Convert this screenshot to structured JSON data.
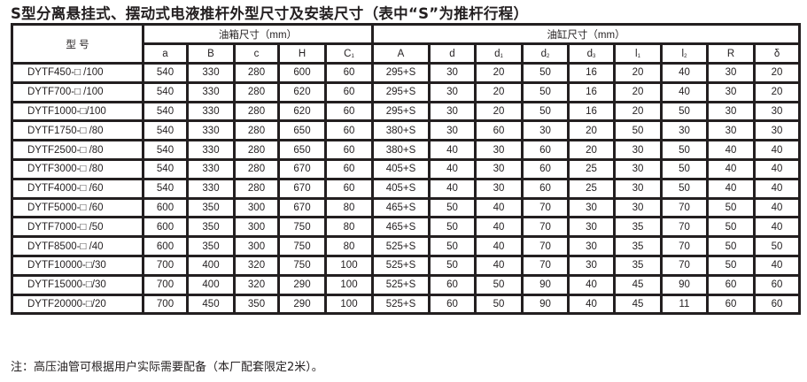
{
  "title": "S型分离悬挂式、摆动式电液推杆外型尺寸及安装尺寸（表中“S”为推杆行程）",
  "table": {
    "model_header": "型 号",
    "group_tank": "油箱尺寸（mm）",
    "group_cylinder": "油缸尺寸（mm）",
    "columns": [
      {
        "base": "a",
        "sub": ""
      },
      {
        "base": "B",
        "sub": ""
      },
      {
        "base": "c",
        "sub": ""
      },
      {
        "base": "H",
        "sub": ""
      },
      {
        "base": "C",
        "sub": "1"
      },
      {
        "base": "A",
        "sub": ""
      },
      {
        "base": "d",
        "sub": ""
      },
      {
        "base": "d",
        "sub": "1"
      },
      {
        "base": "d",
        "sub": "2"
      },
      {
        "base": "d",
        "sub": "3"
      },
      {
        "base": "l",
        "sub": "1"
      },
      {
        "base": "l",
        "sub": "2"
      },
      {
        "base": "R",
        "sub": ""
      },
      {
        "base": "δ",
        "sub": ""
      }
    ],
    "rows": [
      [
        "DYTF450-□ /100",
        "540",
        "330",
        "280",
        "600",
        "60",
        "295+S",
        "30",
        "20",
        "50",
        "16",
        "20",
        "40",
        "30",
        "20"
      ],
      [
        "DYTF700-□ /100",
        "540",
        "330",
        "280",
        "620",
        "60",
        "295+S",
        "30",
        "20",
        "50",
        "16",
        "20",
        "40",
        "30",
        "20"
      ],
      [
        "DYTF1000-□/100",
        "540",
        "330",
        "280",
        "620",
        "60",
        "295+S",
        "30",
        "20",
        "50",
        "16",
        "20",
        "50",
        "30",
        "30"
      ],
      [
        "DYTF1750-□ /80",
        "540",
        "330",
        "280",
        "650",
        "60",
        "380+S",
        "30",
        "60",
        "30",
        "20",
        "50",
        "30",
        "30",
        "30"
      ],
      [
        "DYTF2500-□ /80",
        "540",
        "330",
        "280",
        "650",
        "60",
        "380+S",
        "40",
        "30",
        "60",
        "20",
        "30",
        "50",
        "40",
        "40"
      ],
      [
        "DYTF3000-□ /80",
        "540",
        "330",
        "280",
        "670",
        "60",
        "405+S",
        "40",
        "30",
        "60",
        "25",
        "30",
        "50",
        "40",
        "40"
      ],
      [
        "DYTF4000-□ /60",
        "540",
        "330",
        "280",
        "670",
        "60",
        "405+S",
        "40",
        "30",
        "60",
        "25",
        "30",
        "50",
        "40",
        "40"
      ],
      [
        "DYTF5000-□ /60",
        "600",
        "350",
        "300",
        "670",
        "80",
        "465+S",
        "50",
        "40",
        "70",
        "30",
        "30",
        "70",
        "50",
        "40"
      ],
      [
        "DYTF7000-□ /50",
        "600",
        "350",
        "300",
        "750",
        "80",
        "465+S",
        "50",
        "40",
        "70",
        "30",
        "35",
        "70",
        "50",
        "40"
      ],
      [
        "DYTF8500-□ /40",
        "600",
        "350",
        "300",
        "750",
        "80",
        "525+S",
        "50",
        "40",
        "70",
        "30",
        "35",
        "70",
        "50",
        "50"
      ],
      [
        "DYTF10000-□/30",
        "700",
        "400",
        "320",
        "750",
        "100",
        "525+S",
        "50",
        "40",
        "70",
        "30",
        "35",
        "70",
        "50",
        "40"
      ],
      [
        "DYTF15000-□/30",
        "700",
        "400",
        "320",
        "290",
        "100",
        "525+S",
        "60",
        "50",
        "90",
        "40",
        "45",
        "90",
        "60",
        "60"
      ],
      [
        "DYTF20000-□/20",
        "700",
        "450",
        "350",
        "290",
        "100",
        "525+S",
        "60",
        "50",
        "90",
        "40",
        "45",
        "11",
        "60",
        "60"
      ]
    ]
  },
  "note": "注：高压油管可根据用户实际需要配备（本厂配套限定2米）。"
}
